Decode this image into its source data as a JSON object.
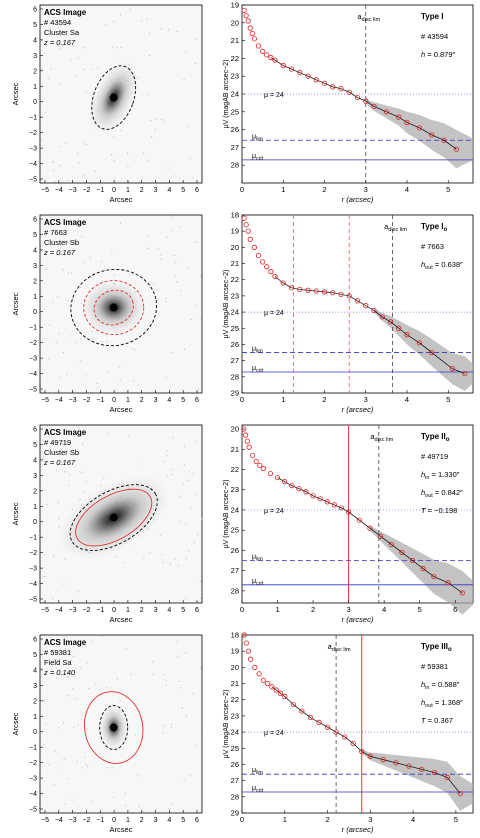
{
  "panels": [
    {
      "image": {
        "title": "ACS Image",
        "id": "# 43594",
        "env": "Cluster Sa",
        "z": "z = 0.167",
        "xlabel": "Arcsec",
        "ylabel": "Arcsec"
      },
      "profile": {
        "type_main": "Type I",
        "type_sub": "",
        "id": "# 43594",
        "params": [
          {
            "name": "h",
            "sub": "",
            "val": " = 0.879″"
          }
        ],
        "yticks": [
          "19",
          "20",
          "21",
          "22",
          "23",
          "24",
          "25",
          "26",
          "27",
          "28"
        ],
        "xticks": [
          "0",
          "1",
          "2",
          "3",
          "4",
          "5"
        ],
        "mu24": "μ = 24",
        "mu_lim": "μ",
        "mu_lim_sub": "lim",
        "mu_crit": "μ",
        "mu_crit_sub": "crit",
        "adisc": "a",
        "adisc_sub": "disc lim",
        "xlabel": "r (arcsec)",
        "ylabel": "μV (magAB arcsec−2)"
      }
    },
    {
      "image": {
        "title": "ACS Image",
        "id": "# 7663",
        "env": "Cluster Sb",
        "z": "z = 0.167",
        "xlabel": "Arcsec",
        "ylabel": "Arcsec"
      },
      "profile": {
        "type_main": "Type I",
        "type_sub": "o",
        "id": "# 7663",
        "params": [
          {
            "name": "h",
            "sub": "out",
            "val": " = 0.638″"
          }
        ],
        "yticks": [
          "18",
          "19",
          "20",
          "21",
          "22",
          "23",
          "24",
          "25",
          "26",
          "27",
          "28",
          "29"
        ],
        "xticks": [
          "0",
          "1",
          "2",
          "3",
          "4",
          "5"
        ],
        "mu24": "μ = 24",
        "mu_lim": "μ",
        "mu_lim_sub": "lim",
        "mu_crit": "μ",
        "mu_crit_sub": "crit",
        "adisc": "a",
        "adisc_sub": "disc lim",
        "xlabel": "r (arcsec)",
        "ylabel": "μV (magAB arcsec−2)"
      }
    },
    {
      "image": {
        "title": "ACS Image",
        "id": "# 49719",
        "env": "Cluster Sb",
        "z": "z = 0.167",
        "xlabel": "Arcsec",
        "ylabel": "Arcsec"
      },
      "profile": {
        "type_main": "Type II",
        "type_sub": "o",
        "id": "# 49719",
        "params": [
          {
            "name": "h",
            "sub": "in",
            "val": " = 1.330″"
          },
          {
            "name": "h",
            "sub": "out",
            "val": " = 0.842″"
          },
          {
            "name": "T",
            "sub": "",
            "val": " = −0.198"
          }
        ],
        "yticks": [
          "20",
          "21",
          "22",
          "23",
          "24",
          "25",
          "26",
          "27",
          "28"
        ],
        "xticks": [
          "0",
          "1",
          "2",
          "3",
          "4",
          "5",
          "6"
        ],
        "mu24": "μ = 24",
        "mu_lim": "μ",
        "mu_lim_sub": "lim",
        "mu_crit": "μ",
        "mu_crit_sub": "crit",
        "adisc": "a",
        "adisc_sub": "disc lim",
        "xlabel": "r (arcsec)",
        "ylabel": "μV (magAB arcsec−2)"
      }
    },
    {
      "image": {
        "title": "ACS Image",
        "id": "# 59381",
        "env": "Field Sa",
        "z": "z = 0.140",
        "xlabel": "Arcsec",
        "ylabel": "Arcsec"
      },
      "profile": {
        "type_main": "Type III",
        "type_sub": "o",
        "id": "# 59381",
        "params": [
          {
            "name": "h",
            "sub": "in",
            "val": " = 0.588″"
          },
          {
            "name": "h",
            "sub": "out",
            "val": " = 1.368″"
          },
          {
            "name": "T",
            "sub": "",
            "val": " = 0.367"
          }
        ],
        "yticks": [
          "18",
          "19",
          "20",
          "21",
          "22",
          "23",
          "24",
          "25",
          "26",
          "27",
          "28",
          "29"
        ],
        "xticks": [
          "0",
          "1",
          "2",
          "3",
          "4",
          "5"
        ],
        "mu24": "μ = 24",
        "mu_lim": "μ",
        "mu_lim_sub": "lim",
        "mu_crit": "μ",
        "mu_crit_sub": "crit",
        "adisc": "a",
        "adisc_sub": "disc lim",
        "xlabel": "r (arcsec)",
        "ylabel": "μV (magAB arcsec−2)"
      }
    }
  ],
  "image_ticks": {
    "x": [
      "−5",
      "−4",
      "−3",
      "−2",
      "−1",
      "0",
      "1",
      "2",
      "3",
      "4",
      "5",
      "6"
    ],
    "y": [
      "6",
      "5",
      "4",
      "3",
      "2",
      "1",
      "0",
      "−1",
      "−2",
      "−3",
      "−4",
      "−5"
    ]
  },
  "chart_data": [
    {
      "type": "scatter",
      "id": "43594",
      "xlim": [
        0,
        5.6
      ],
      "ylim": [
        19,
        29
      ],
      "y_inverted": true,
      "x_data": [
        0.05,
        0.1,
        0.15,
        0.2,
        0.25,
        0.3,
        0.4,
        0.5,
        0.6,
        0.7,
        0.8,
        1.0,
        1.2,
        1.4,
        1.6,
        1.8,
        2.0,
        2.2,
        2.4,
        2.6,
        2.8,
        3.0,
        3.2,
        3.5,
        3.8,
        4.0,
        4.3,
        4.6,
        4.9,
        5.2
      ],
      "y_data": [
        19.3,
        19.6,
        19.9,
        20.3,
        20.6,
        20.9,
        21.3,
        21.6,
        21.8,
        21.95,
        22.1,
        22.4,
        22.6,
        22.8,
        23.0,
        23.2,
        23.4,
        23.6,
        23.7,
        23.9,
        24.2,
        24.4,
        24.7,
        25.0,
        25.3,
        25.6,
        25.9,
        26.3,
        26.6,
        27.1
      ],
      "mu_lim": 26.6,
      "mu_crit": 27.7,
      "a_disc_lim": 3.0,
      "breaks": [],
      "breaks_color": "#e07070"
    },
    {
      "type": "scatter",
      "id": "7663",
      "xlim": [
        0,
        5.6
      ],
      "ylim": [
        18,
        29
      ],
      "y_inverted": true,
      "x_data": [
        0.05,
        0.1,
        0.15,
        0.2,
        0.3,
        0.4,
        0.5,
        0.6,
        0.7,
        0.8,
        1.0,
        1.2,
        1.4,
        1.6,
        1.8,
        2.0,
        2.2,
        2.4,
        2.6,
        2.8,
        3.0,
        3.2,
        3.4,
        3.6,
        3.8,
        4.0,
        4.3,
        4.6,
        5.1,
        5.4
      ],
      "y_data": [
        18.2,
        18.6,
        19.0,
        19.5,
        20.0,
        20.5,
        20.9,
        21.2,
        21.5,
        21.8,
        22.2,
        22.5,
        22.6,
        22.65,
        22.7,
        22.75,
        22.8,
        22.9,
        23.0,
        23.3,
        23.6,
        23.9,
        24.3,
        24.6,
        25.0,
        25.4,
        25.9,
        26.5,
        27.5,
        27.8
      ],
      "mu_lim": 26.5,
      "mu_crit": 27.7,
      "a_disc_lim": 3.65,
      "breaks": [
        1.25,
        2.6
      ],
      "breaks_color": "#e07070"
    },
    {
      "type": "scatter",
      "id": "49719",
      "xlim": [
        0,
        6.5
      ],
      "ylim": [
        19.8,
        28.6
      ],
      "y_inverted": true,
      "x_data": [
        0.05,
        0.1,
        0.15,
        0.2,
        0.3,
        0.4,
        0.5,
        0.6,
        0.8,
        1.0,
        1.2,
        1.4,
        1.6,
        1.8,
        2.0,
        2.2,
        2.4,
        2.6,
        2.8,
        3.0,
        3.3,
        3.6,
        3.9,
        4.2,
        4.5,
        4.8,
        5.1,
        5.4,
        5.8,
        6.2
      ],
      "y_data": [
        20.0,
        20.3,
        20.6,
        20.9,
        21.3,
        21.6,
        21.8,
        21.95,
        22.2,
        22.4,
        22.6,
        22.8,
        22.95,
        23.1,
        23.3,
        23.45,
        23.6,
        23.75,
        23.9,
        24.1,
        24.5,
        24.9,
        25.3,
        25.7,
        26.1,
        26.5,
        26.9,
        27.3,
        27.6,
        28.1
      ],
      "mu_lim": 26.5,
      "mu_crit": 27.7,
      "a_disc_lim": 3.85,
      "breaks": [
        3.0
      ],
      "breaks_color": "#e02020"
    },
    {
      "type": "scatter",
      "id": "59381",
      "xlim": [
        0,
        5.4
      ],
      "ylim": [
        18,
        29
      ],
      "y_inverted": true,
      "x_data": [
        0.05,
        0.1,
        0.15,
        0.2,
        0.3,
        0.4,
        0.5,
        0.6,
        0.7,
        0.8,
        0.9,
        1.0,
        1.2,
        1.4,
        1.6,
        1.8,
        2.0,
        2.2,
        2.4,
        2.6,
        2.8,
        3.0,
        3.3,
        3.6,
        3.9,
        4.2,
        4.5,
        4.8,
        5.1
      ],
      "y_data": [
        18.0,
        18.5,
        19.0,
        19.5,
        20.0,
        20.4,
        20.8,
        21.0,
        21.2,
        21.4,
        21.6,
        21.8,
        22.3,
        22.7,
        23.1,
        23.4,
        23.7,
        24.0,
        24.3,
        24.7,
        25.2,
        25.5,
        25.7,
        25.9,
        26.1,
        26.3,
        26.5,
        26.8,
        27.8
      ],
      "mu_lim": 26.6,
      "mu_crit": 27.7,
      "a_disc_lim": 2.2,
      "breaks": [
        2.8
      ],
      "breaks_color": "#e02020"
    }
  ]
}
